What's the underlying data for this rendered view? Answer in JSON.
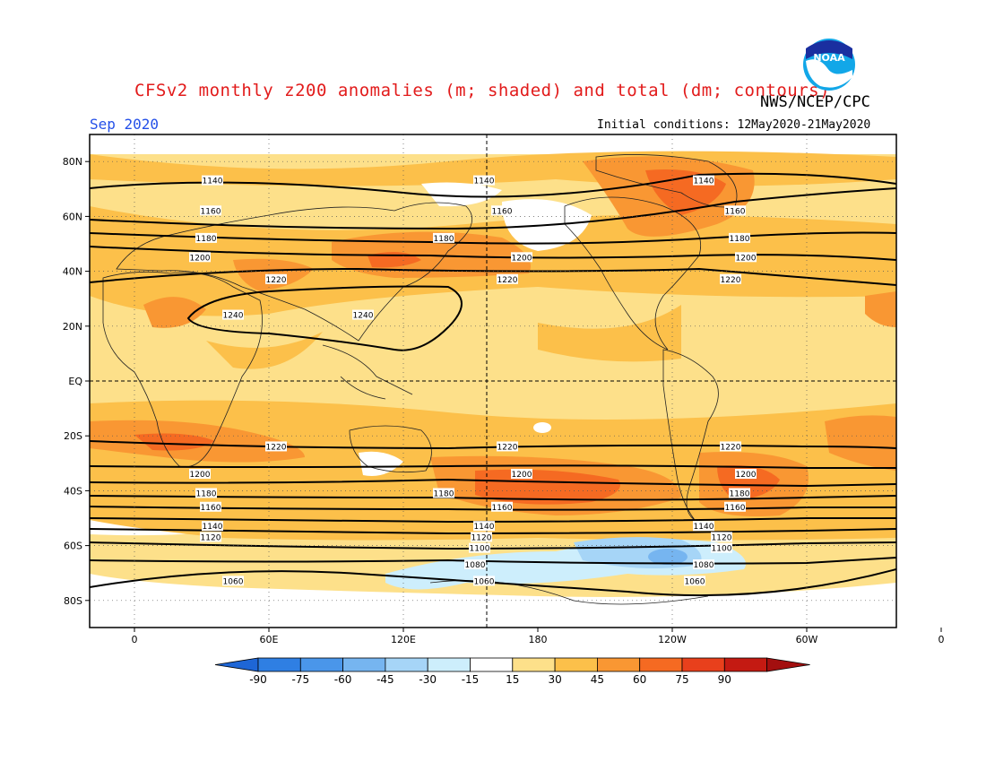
{
  "title": "CFSv2 monthly z200 anomalies (m; shaded) and total (dm; contours)",
  "agency": "NWS/NCEP/CPC",
  "logo_text": "NOAA",
  "month": "Sep 2020",
  "initial_conditions": "Initial conditions: 12May2020-21May2020",
  "lat_labels": [
    "80N",
    "60N",
    "40N",
    "20N",
    "EQ",
    "20S",
    "40S",
    "60S",
    "80S"
  ],
  "lon_labels": [
    "0",
    "60E",
    "120E",
    "180",
    "120W",
    "60W",
    "0"
  ],
  "colorbar": {
    "ticks": [
      "-90",
      "-75",
      "-60",
      "-45",
      "-30",
      "-15",
      "15",
      "30",
      "45",
      "60",
      "75",
      "90"
    ],
    "colors": [
      "#1e66d6",
      "#2f7fe3",
      "#4a96ea",
      "#76b5f0",
      "#a6d5f7",
      "#cdeefc",
      "#ffffff",
      "#fde08a",
      "#fcc04a",
      "#f99733",
      "#f56a22",
      "#e8401c",
      "#c41a12",
      "#a30f0f"
    ]
  },
  "contour_levels": [
    {
      "label": "1060",
      "lat": -73
    },
    {
      "label": "1080",
      "lat": -67
    },
    {
      "label": "1100",
      "lat": -61
    },
    {
      "label": "1120",
      "lat": -57
    },
    {
      "label": "1140",
      "lat": -53
    },
    {
      "label": "1160",
      "lat": -46
    },
    {
      "label": "1180",
      "lat": -41
    },
    {
      "label": "1200",
      "lat": -34
    },
    {
      "label": "1220",
      "lat": -24
    },
    {
      "label": "1240",
      "lat": 24
    },
    {
      "label": "1220",
      "lat": 37
    },
    {
      "label": "1200",
      "lat": 45
    },
    {
      "label": "1180",
      "lat": 52
    },
    {
      "label": "1160",
      "lat": 62
    },
    {
      "label": "1140",
      "lat": 73
    }
  ]
}
